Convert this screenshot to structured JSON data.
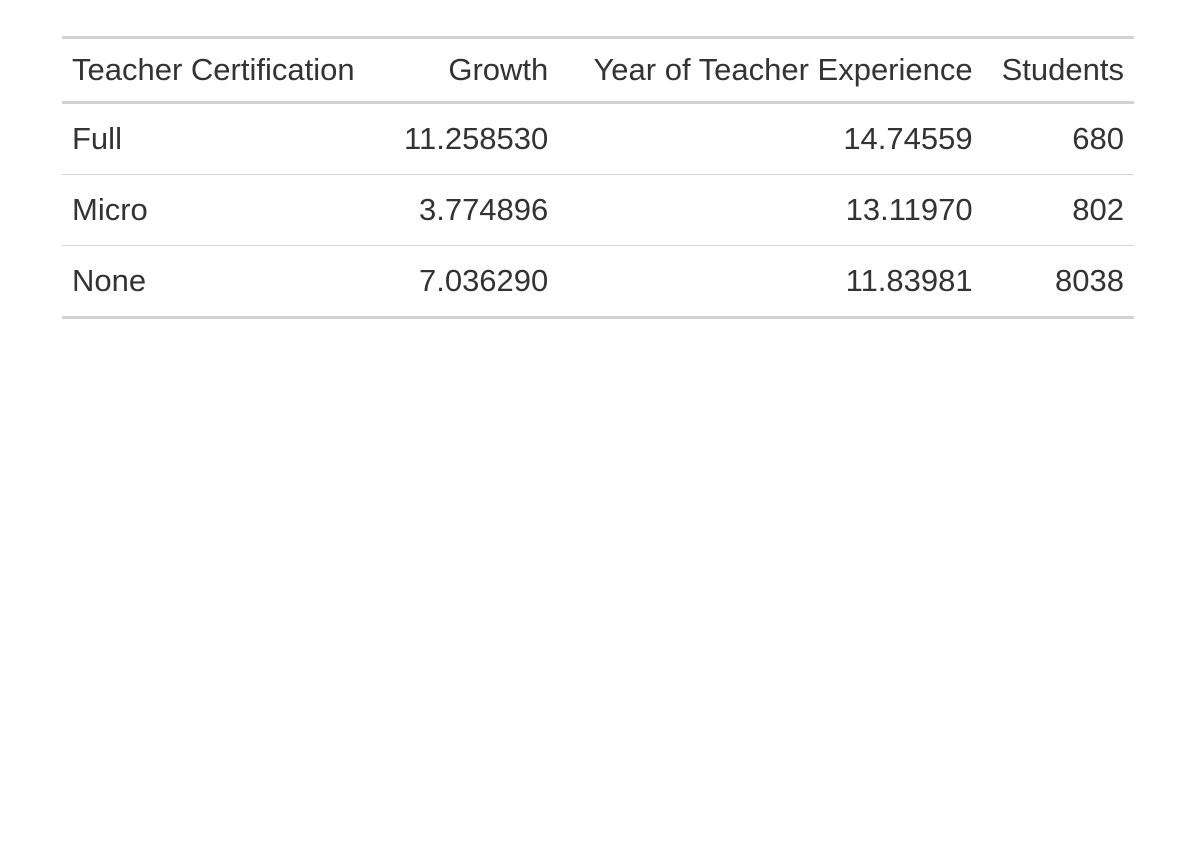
{
  "table": {
    "columns": [
      {
        "label": "Teacher Certification",
        "align": "left"
      },
      {
        "label": "Growth",
        "align": "right"
      },
      {
        "label": "Year of Teacher Experience",
        "align": "right"
      },
      {
        "label": "Students",
        "align": "right"
      }
    ],
    "rows": [
      [
        "Full",
        "11.258530",
        "14.74559",
        "680"
      ],
      [
        "Micro",
        "3.774896",
        "13.11970",
        "802"
      ],
      [
        "None",
        "7.036290",
        "11.83981",
        "8038"
      ]
    ]
  },
  "colors": {
    "text": "#333333",
    "rule": "#d3d3d3",
    "background": "#ffffff"
  }
}
